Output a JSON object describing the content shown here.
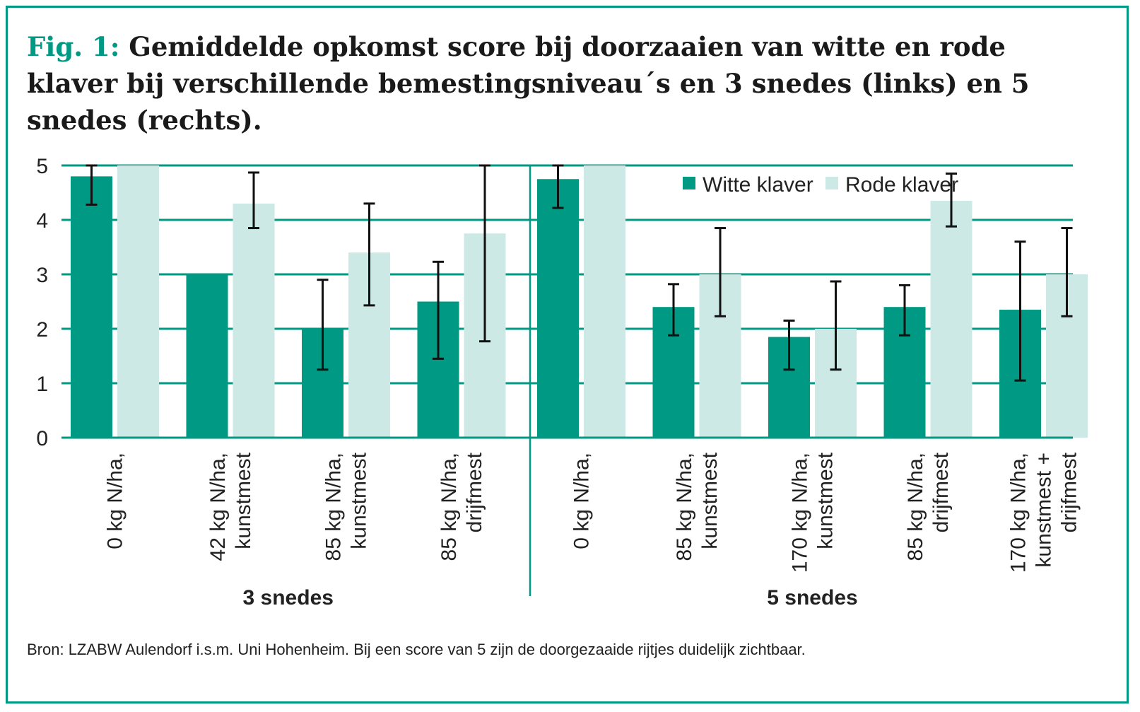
{
  "figure": {
    "fig_label": "Fig. 1:",
    "title": "Gemiddelde opkomst score bij doorzaaien van witte en rode klaver bij verschillende bemestingsniveau´s en 3 snedes (links) en 5 snedes (rechts).",
    "source": "Bron: LZABW Aulendorf i.s.m. Uni Hohenheim. Bij een score van 5 zijn de doorgezaaide rijtjes duidelijk zichtbaar."
  },
  "colors": {
    "frame": "#009983",
    "witte": "#009983",
    "rode": "#cce9e5",
    "grid": "#009983",
    "error": "#111111"
  },
  "chart_data": {
    "type": "bar",
    "ylim": [
      0,
      5
    ],
    "yticks": [
      0,
      1,
      2,
      3,
      4,
      5
    ],
    "grid": true,
    "legend": {
      "placement": "top-right",
      "entries": [
        "Witte klaver",
        "Rode klaver"
      ]
    },
    "series": [
      {
        "name": "Witte klaver"
      },
      {
        "name": "Rode klaver"
      }
    ],
    "groups": [
      {
        "label": "3 snedes",
        "categories": [
          {
            "lines": [
              "0 kg N/ha,"
            ],
            "witte": 4.8,
            "witte_err": [
              4.28,
              5.0
            ],
            "rode": 5.0,
            "rode_err": null
          },
          {
            "lines": [
              "42 kg N/ha,",
              "kunstmest"
            ],
            "witte": 3.0,
            "witte_err": null,
            "rode": 4.3,
            "rode_err": [
              3.85,
              4.87
            ]
          },
          {
            "lines": [
              "85 kg N/ha,",
              "kunstmest"
            ],
            "witte": 2.0,
            "witte_err": [
              1.25,
              2.9
            ],
            "rode": 3.4,
            "rode_err": [
              2.43,
              4.3
            ]
          },
          {
            "lines": [
              "85 kg N/ha,",
              "drijfmest"
            ],
            "witte": 2.5,
            "witte_err": [
              1.45,
              3.23
            ],
            "rode": 3.75,
            "rode_err": [
              1.77,
              5.0
            ]
          }
        ]
      },
      {
        "label": "5 snedes",
        "categories": [
          {
            "lines": [
              "0 kg N/ha,"
            ],
            "witte": 4.75,
            "witte_err": [
              4.22,
              5.0
            ],
            "rode": 5.0,
            "rode_err": null
          },
          {
            "lines": [
              "85 kg N/ha,",
              "kunstmest"
            ],
            "witte": 2.4,
            "witte_err": [
              1.88,
              2.82
            ],
            "rode": 3.0,
            "rode_err": [
              2.23,
              3.85
            ]
          },
          {
            "lines": [
              "170 kg N/ha,",
              "kunstmest"
            ],
            "witte": 1.85,
            "witte_err": [
              1.25,
              2.15
            ],
            "rode": 2.0,
            "rode_err": [
              1.25,
              2.87
            ]
          },
          {
            "lines": [
              "85 kg N/ha,",
              "drijfmest"
            ],
            "witte": 2.4,
            "witte_err": [
              1.88,
              2.8
            ],
            "rode": 4.35,
            "rode_err": [
              3.88,
              4.85
            ]
          },
          {
            "lines": [
              "170 kg N/ha,",
              "kunstmest +",
              "drijfmest"
            ],
            "witte": 2.35,
            "witte_err": [
              1.05,
              3.6
            ],
            "rode": 3.0,
            "rode_err": [
              2.23,
              3.85
            ]
          }
        ]
      }
    ]
  }
}
